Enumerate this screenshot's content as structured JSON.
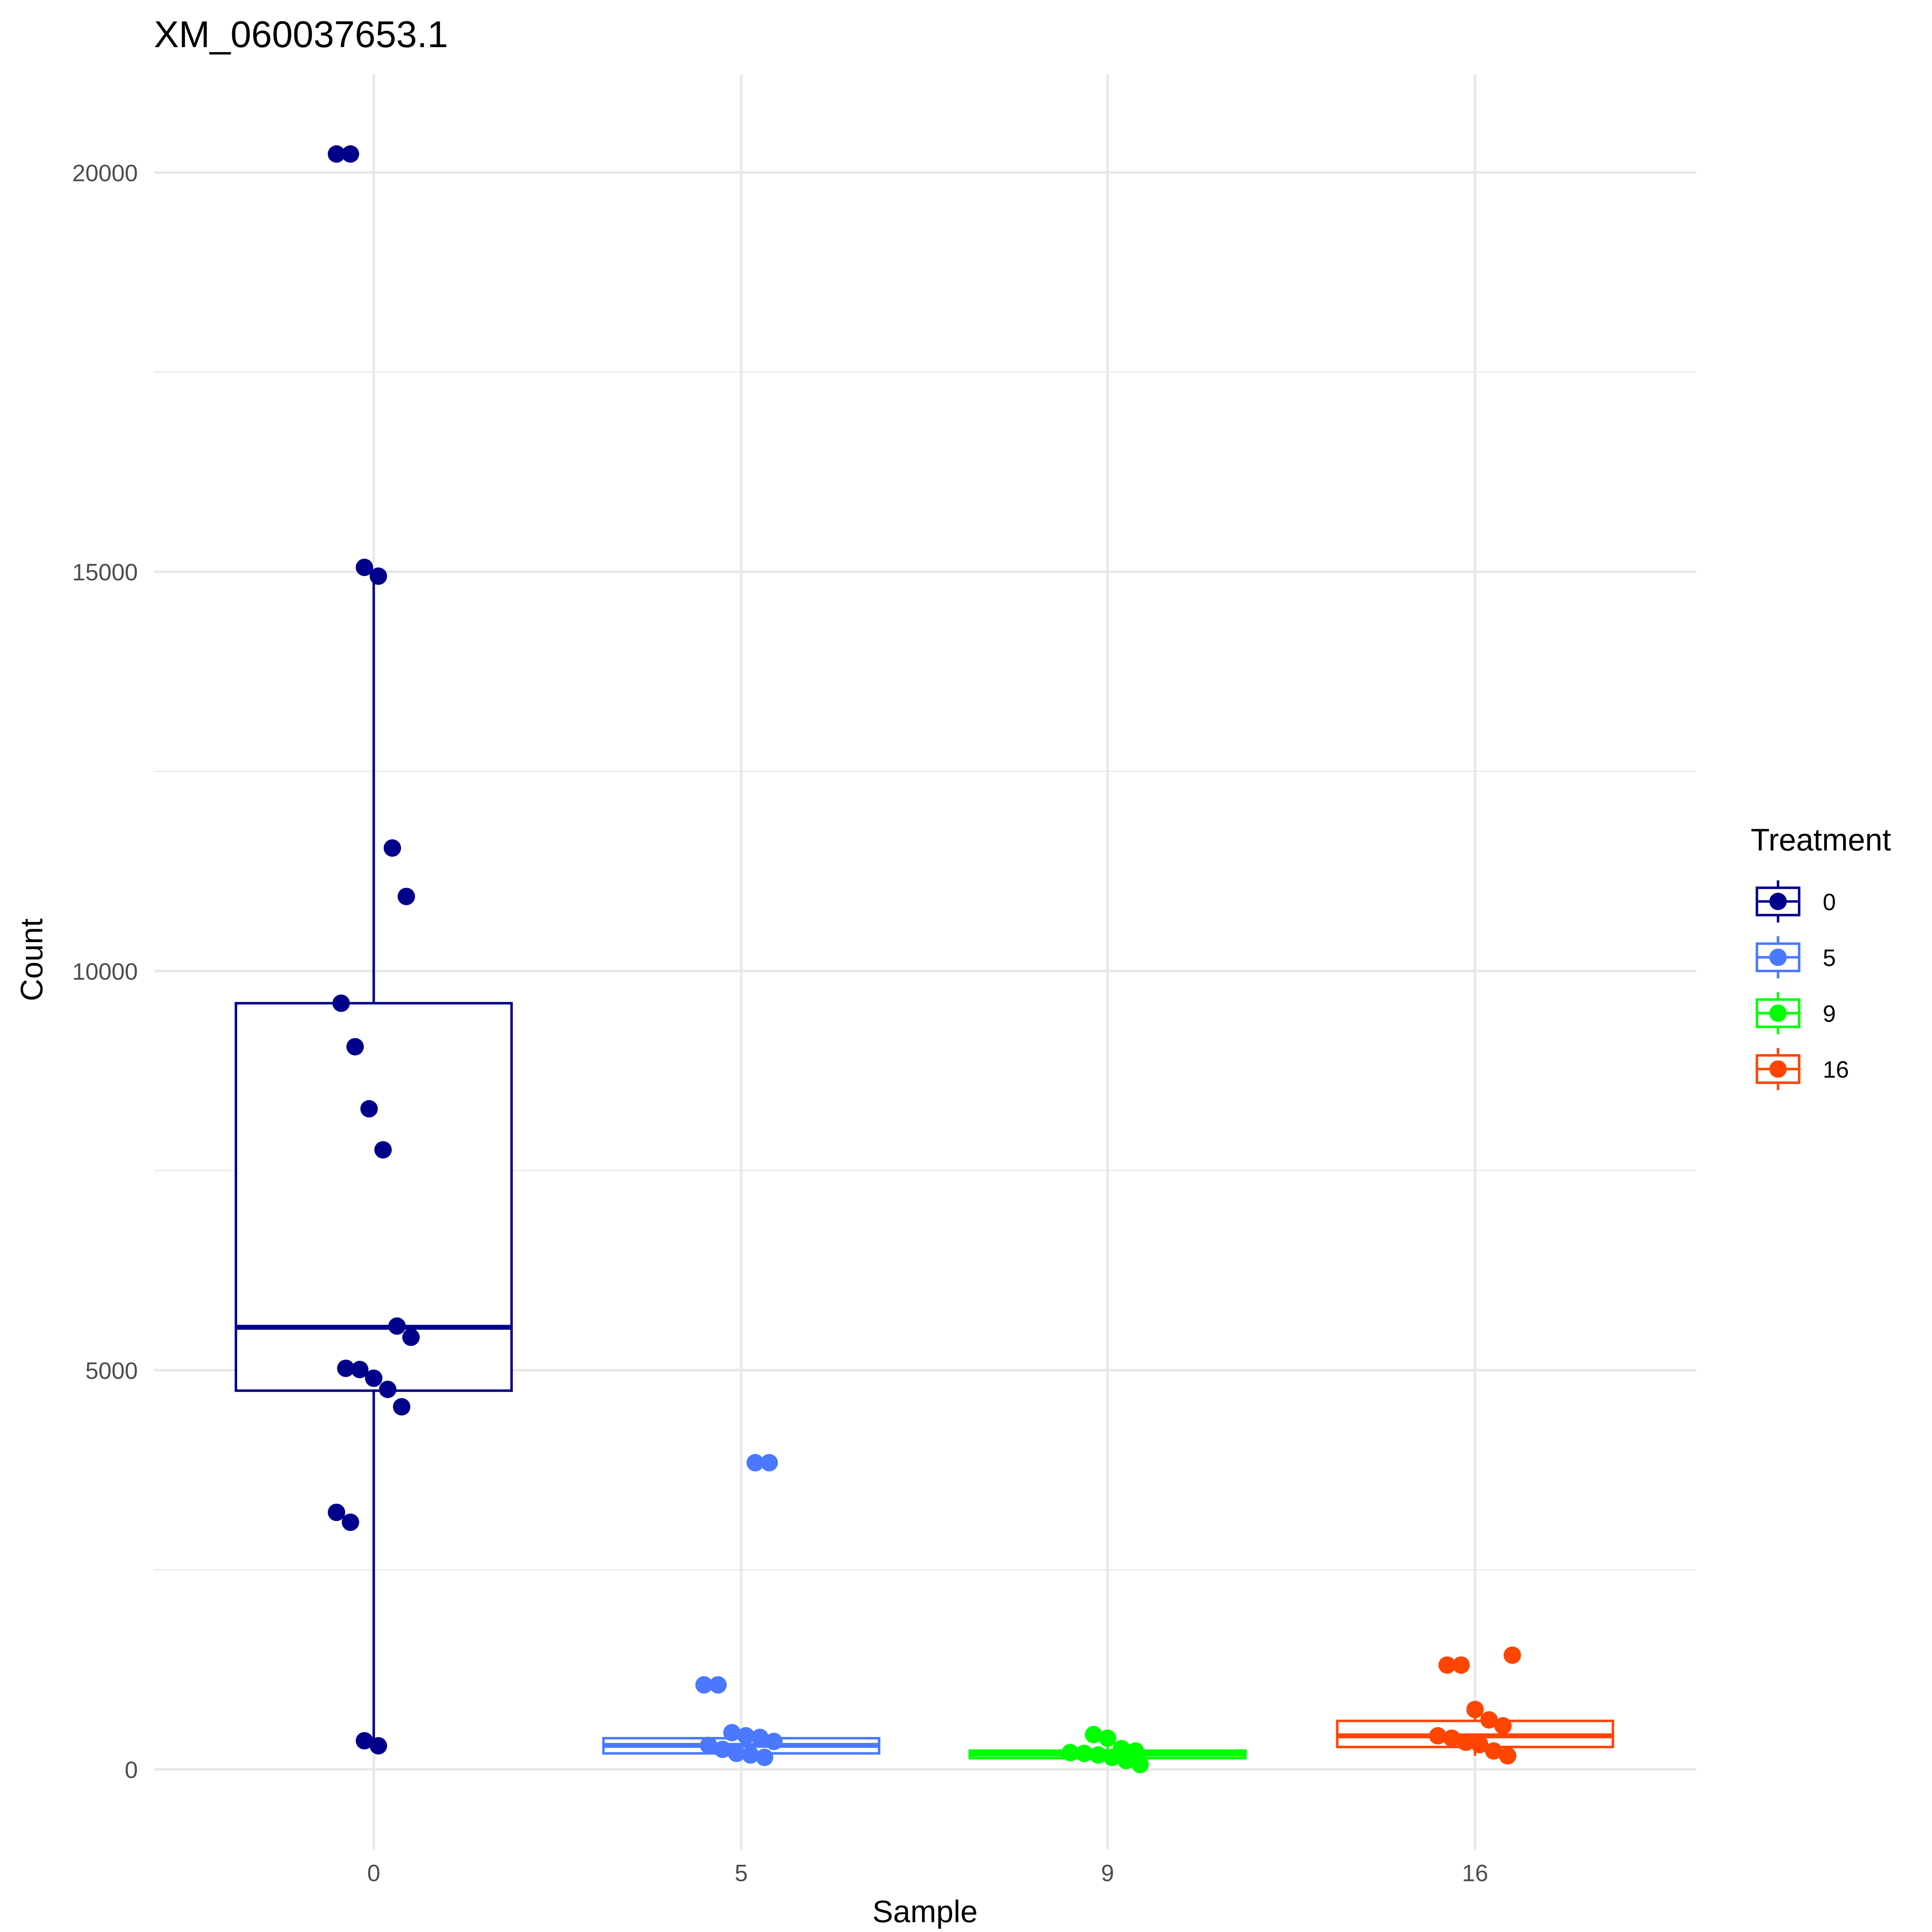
{
  "chart_data": {
    "type": "box",
    "title": "XM_060037653.1",
    "xlabel": "Sample",
    "ylabel": "Count",
    "categories": [
      "0",
      "5",
      "9",
      "16"
    ],
    "ylim": [
      -1100,
      21200
    ],
    "yticks": [
      0,
      5000,
      10000,
      15000,
      20000
    ],
    "ytick_labels": [
      "0",
      "5000",
      "10000",
      "15000",
      "20000"
    ],
    "grid": true,
    "legend": {
      "title": "Treatment",
      "placement": "right",
      "entries": [
        "0",
        "5",
        "9",
        "16"
      ]
    },
    "colors": {
      "0": "#00008B",
      "5": "#4A78FF",
      "9": "#00FF00",
      "16": "#FF4500"
    },
    "series": [
      {
        "name": "0",
        "box": {
          "lower_whisker": 311,
          "q1": 4743,
          "median": 5537,
          "q3": 9596,
          "upper_whisker": 14945
        },
        "points": [
          20233,
          20233,
          15055,
          14945,
          11540,
          10933,
          9596,
          9051,
          8274,
          7760,
          5552,
          5412,
          5023,
          5008,
          4899,
          4759,
          4541,
          3219,
          3095,
          358,
          295
        ]
      },
      {
        "name": "5",
        "box": {
          "lower_whisker": 150,
          "q1": 200,
          "median": 300,
          "q3": 390,
          "upper_whisker": 460
        },
        "points": [
          3841,
          3841,
          1058,
          1058,
          460,
          420,
          400,
          350,
          300,
          250,
          200,
          180,
          150
        ]
      },
      {
        "name": "9",
        "box": {
          "lower_whisker": 60,
          "q1": 140,
          "median": 190,
          "q3": 235,
          "upper_whisker": 435
        },
        "points": [
          435,
          390,
          260,
          230,
          210,
          200,
          180,
          150,
          110,
          60
        ]
      },
      {
        "name": "16",
        "box": {
          "lower_whisker": 170,
          "q1": 280,
          "median": 420,
          "q3": 607,
          "upper_whisker": 750
        },
        "points": [
          1430,
          1306,
          1306,
          750,
          620,
          545,
          420,
          390,
          340,
          310,
          230,
          170
        ]
      }
    ]
  }
}
